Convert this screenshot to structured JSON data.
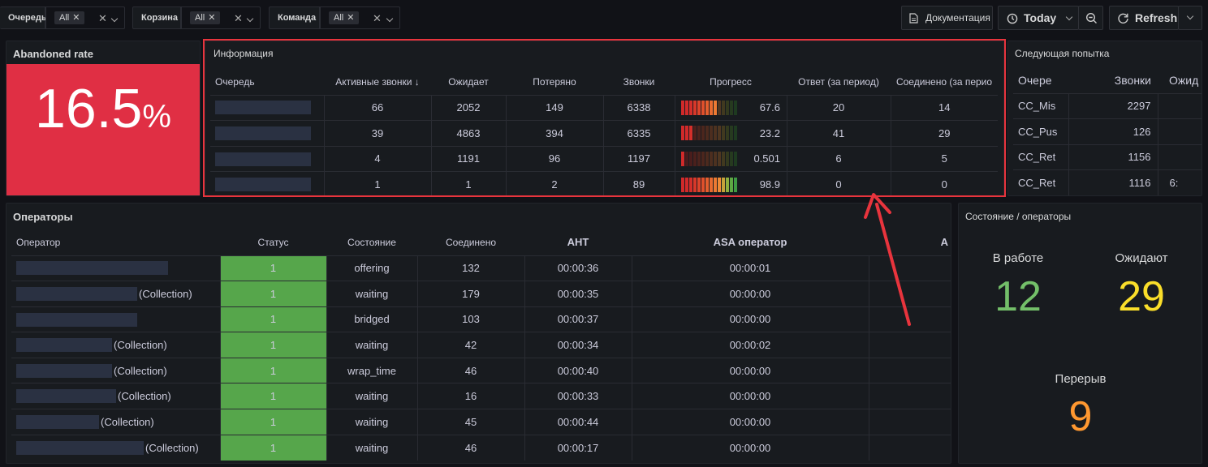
{
  "toolbar": {
    "variables": [
      {
        "label": "Очередь",
        "value": "All"
      },
      {
        "label": "Корзина",
        "value": "All"
      },
      {
        "label": "Команда",
        "value": "All"
      }
    ],
    "docs_label": "Документация",
    "time_label": "Today",
    "refresh_label": "Refresh"
  },
  "abandoned": {
    "title": "Abandoned rate",
    "value": "16.5",
    "unit": "%",
    "color": "#e02f44"
  },
  "info": {
    "title": "Информация",
    "columns": [
      "Очередь",
      "Активные звонки",
      "Ожидает",
      "Потеряно",
      "Звонки",
      "Прогресс",
      "Ответ (за период)",
      "Соединено (за перио"
    ],
    "rows": [
      {
        "active": "66",
        "waiting": "2052",
        "lost": "149",
        "calls": "6338",
        "progress": 67.6,
        "progress_label": "67.6",
        "answered": "20",
        "connected": "14"
      },
      {
        "active": "39",
        "waiting": "4863",
        "lost": "394",
        "calls": "6335",
        "progress": 23.2,
        "progress_label": "23.2",
        "answered": "41",
        "connected": "29"
      },
      {
        "active": "4",
        "waiting": "1191",
        "lost": "96",
        "calls": "1197",
        "progress": 0.501,
        "progress_label": "0.501",
        "answered": "6",
        "connected": "5"
      },
      {
        "active": "1",
        "waiting": "1",
        "lost": "2",
        "calls": "89",
        "progress": 98.9,
        "progress_label": "98.9",
        "answered": "0",
        "connected": "0"
      }
    ]
  },
  "next": {
    "title": "Следующая попытка",
    "columns": [
      "Очере",
      "Звонки",
      "Ожид"
    ],
    "rows": [
      {
        "queue": "CC_Mis",
        "calls": "2297",
        "wait": ""
      },
      {
        "queue": "CC_Pus",
        "calls": "126",
        "wait": ""
      },
      {
        "queue": "CC_Ret",
        "calls": "1156",
        "wait": ""
      },
      {
        "queue": "CC_Ret",
        "calls": "1116",
        "wait": "6:"
      }
    ]
  },
  "operators": {
    "title": "Операторы",
    "columns": [
      "Оператор",
      "Статус",
      "Состояние",
      "Соединено",
      "AHT",
      "ASA оператор",
      "A"
    ],
    "rows": [
      {
        "suffix": "",
        "status": "1",
        "state": "offering",
        "connected": "132",
        "aht": "00:00:36",
        "asa": "00:00:01"
      },
      {
        "suffix": "(Collection)",
        "status": "1",
        "state": "waiting",
        "connected": "179",
        "aht": "00:00:35",
        "asa": "00:00:00"
      },
      {
        "suffix": "",
        "status": "1",
        "state": "bridged",
        "connected": "103",
        "aht": "00:00:37",
        "asa": "00:00:00"
      },
      {
        "suffix": "(Collection)",
        "status": "1",
        "state": "waiting",
        "connected": "42",
        "aht": "00:00:34",
        "asa": "00:00:02"
      },
      {
        "suffix": "(Collection)",
        "status": "1",
        "state": "wrap_time",
        "connected": "46",
        "aht": "00:00:40",
        "asa": "00:00:00"
      },
      {
        "suffix": "(Collection)",
        "status": "1",
        "state": "waiting",
        "connected": "16",
        "aht": "00:00:33",
        "asa": "00:00:00"
      },
      {
        "suffix": "(Collection)",
        "status": "1",
        "state": "waiting",
        "connected": "45",
        "aht": "00:00:44",
        "asa": "00:00:00"
      },
      {
        "suffix": "(Collection)",
        "status": "1",
        "state": "waiting",
        "connected": "46",
        "aht": "00:00:17",
        "asa": "00:00:00"
      }
    ]
  },
  "states": {
    "title": "Состояние / операторы",
    "items": [
      {
        "label": "В работе",
        "value": "12",
        "color": "#73bf69"
      },
      {
        "label": "Ожидают",
        "value": "29",
        "color": "#fade2a"
      },
      {
        "label": "Перерыв",
        "value": "9",
        "color": "#ff9830"
      }
    ]
  },
  "colors": {
    "status_green": "#56a64b",
    "annotation_red": "#e8343d"
  }
}
